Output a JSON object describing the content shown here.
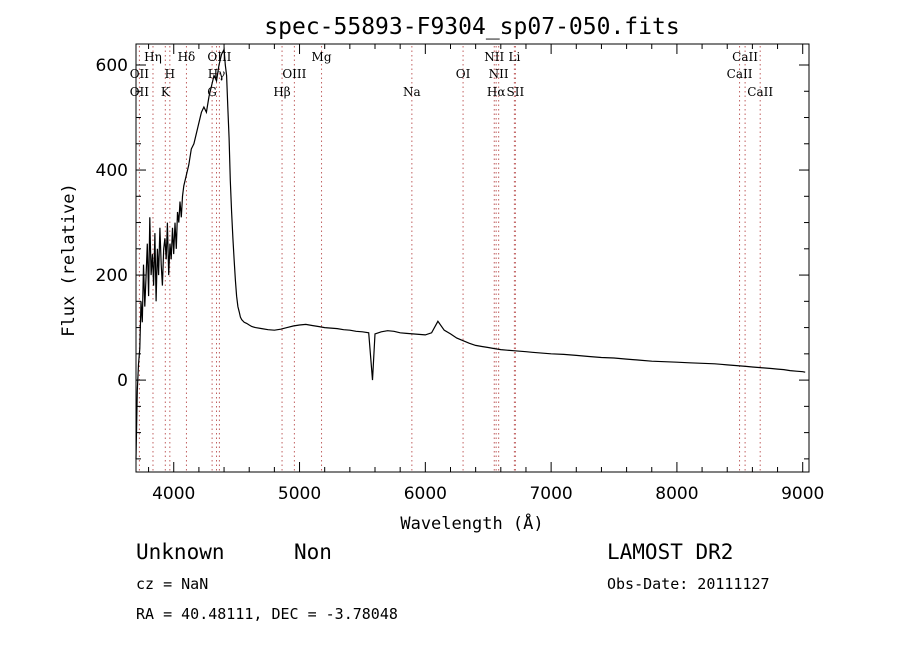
{
  "chart_data": {
    "type": "line",
    "title": "spec-55893-F9304_sp07-050.fits",
    "xlabel": "Wavelength (Å)",
    "ylabel": "Flux (relative)",
    "xlim": [
      3700,
      9050
    ],
    "ylim": [
      -175,
      640
    ],
    "xticks": [
      4000,
      5000,
      6000,
      7000,
      8000,
      9000
    ],
    "yticks": [
      0,
      200,
      400,
      600
    ],
    "grid": false,
    "series": [
      {
        "color": "#000000",
        "x": [
          3700,
          3710,
          3720,
          3730,
          3740,
          3750,
          3760,
          3770,
          3780,
          3790,
          3800,
          3810,
          3820,
          3830,
          3840,
          3850,
          3860,
          3870,
          3880,
          3890,
          3900,
          3910,
          3920,
          3930,
          3940,
          3950,
          3960,
          3970,
          3980,
          3990,
          4000,
          4010,
          4020,
          4030,
          4040,
          4050,
          4060,
          4070,
          4080,
          4100,
          4120,
          4140,
          4160,
          4180,
          4200,
          4220,
          4240,
          4260,
          4280,
          4300,
          4320,
          4340,
          4360,
          4380,
          4400,
          4410,
          4420,
          4430,
          4440,
          4450,
          4460,
          4470,
          4480,
          4490,
          4500,
          4510,
          4520,
          4530,
          4540,
          4560,
          4580,
          4600,
          4620,
          4650,
          4700,
          4750,
          4800,
          4850,
          4900,
          4950,
          5000,
          5050,
          5100,
          5150,
          5200,
          5250,
          5300,
          5350,
          5400,
          5450,
          5500,
          5550,
          5580,
          5600,
          5650,
          5700,
          5750,
          5800,
          5850,
          5900,
          5950,
          6000,
          6050,
          6100,
          6150,
          6200,
          6250,
          6300,
          6350,
          6400,
          6450,
          6500,
          6550,
          6600,
          6650,
          6700,
          6750,
          6800,
          6850,
          6900,
          6950,
          7000,
          7100,
          7200,
          7300,
          7400,
          7500,
          7600,
          7700,
          7800,
          7900,
          8000,
          8100,
          8200,
          8300,
          8350,
          8400,
          8450,
          8500,
          8550,
          8600,
          8650,
          8700,
          8750,
          8800,
          8850,
          8900,
          8950,
          9000,
          9020
        ],
        "y": [
          -150,
          -20,
          30,
          60,
          150,
          110,
          220,
          140,
          200,
          260,
          160,
          310,
          200,
          240,
          180,
          280,
          150,
          250,
          200,
          290,
          220,
          180,
          250,
          270,
          230,
          300,
          200,
          260,
          230,
          290,
          240,
          300,
          250,
          320,
          300,
          340,
          310,
          350,
          370,
          390,
          410,
          440,
          450,
          470,
          490,
          510,
          520,
          510,
          540,
          560,
          580,
          570,
          600,
          620,
          630,
          600,
          580,
          520,
          460,
          380,
          320,
          270,
          230,
          190,
          160,
          140,
          130,
          120,
          115,
          110,
          108,
          105,
          102,
          100,
          98,
          96,
          95,
          97,
          100,
          103,
          105,
          106,
          104,
          102,
          100,
          99,
          98,
          96,
          95,
          93,
          92,
          90,
          0,
          88,
          92,
          94,
          93,
          90,
          89,
          88,
          87,
          86,
          90,
          112,
          95,
          88,
          80,
          75,
          70,
          66,
          64,
          62,
          60,
          58,
          57,
          56,
          55,
          54,
          53,
          52,
          51,
          50,
          49,
          47,
          45,
          43,
          42,
          40,
          38,
          36,
          35,
          34,
          33,
          32,
          31,
          30,
          29,
          28,
          27,
          26,
          25,
          24,
          23,
          22,
          21,
          20,
          18,
          17,
          16,
          15
        ]
      }
    ],
    "annotations": [
      {
        "label": "OII",
        "x": 3727,
        "row": 1
      },
      {
        "label": "Hη",
        "x": 3835,
        "row": 0
      },
      {
        "label": "OII",
        "x": 3727,
        "row": 2
      },
      {
        "label": "H",
        "x": 3969,
        "row": 1
      },
      {
        "label": "K",
        "x": 3933,
        "row": 2
      },
      {
        "label": "Hδ",
        "x": 4101,
        "row": 0
      },
      {
        "label": "OIII",
        "x": 4363,
        "row": 0
      },
      {
        "label": "Hγ",
        "x": 4340,
        "row": 1
      },
      {
        "label": "G",
        "x": 4305,
        "row": 2
      },
      {
        "label": "Mg",
        "x": 5175,
        "row": 0
      },
      {
        "label": "OIII",
        "x": 4959,
        "row": 1
      },
      {
        "label": "Hβ",
        "x": 4861,
        "row": 2
      },
      {
        "label": "Na",
        "x": 5893,
        "row": 2
      },
      {
        "label": "OI",
        "x": 6300,
        "row": 1
      },
      {
        "label": "NII",
        "x": 6548,
        "row": 0
      },
      {
        "label": "Li",
        "x": 6708,
        "row": 0
      },
      {
        "label": "NII",
        "x": 6583,
        "row": 1
      },
      {
        "label": "Hα",
        "x": 6563,
        "row": 2
      },
      {
        "label": "SII",
        "x": 6716,
        "row": 2
      },
      {
        "label": "CaII",
        "x": 8542,
        "row": 0
      },
      {
        "label": "CaII",
        "x": 8498,
        "row": 1
      },
      {
        "label": "CaII",
        "x": 8662,
        "row": 2
      }
    ]
  },
  "footer": {
    "class_label": "Unknown",
    "subclass_label": "Non",
    "survey": "LAMOST DR2",
    "cz": "cz = NaN",
    "obs_date": "Obs-Date: 20111127",
    "coords": "RA =  40.48111, DEC =  -3.78048"
  }
}
